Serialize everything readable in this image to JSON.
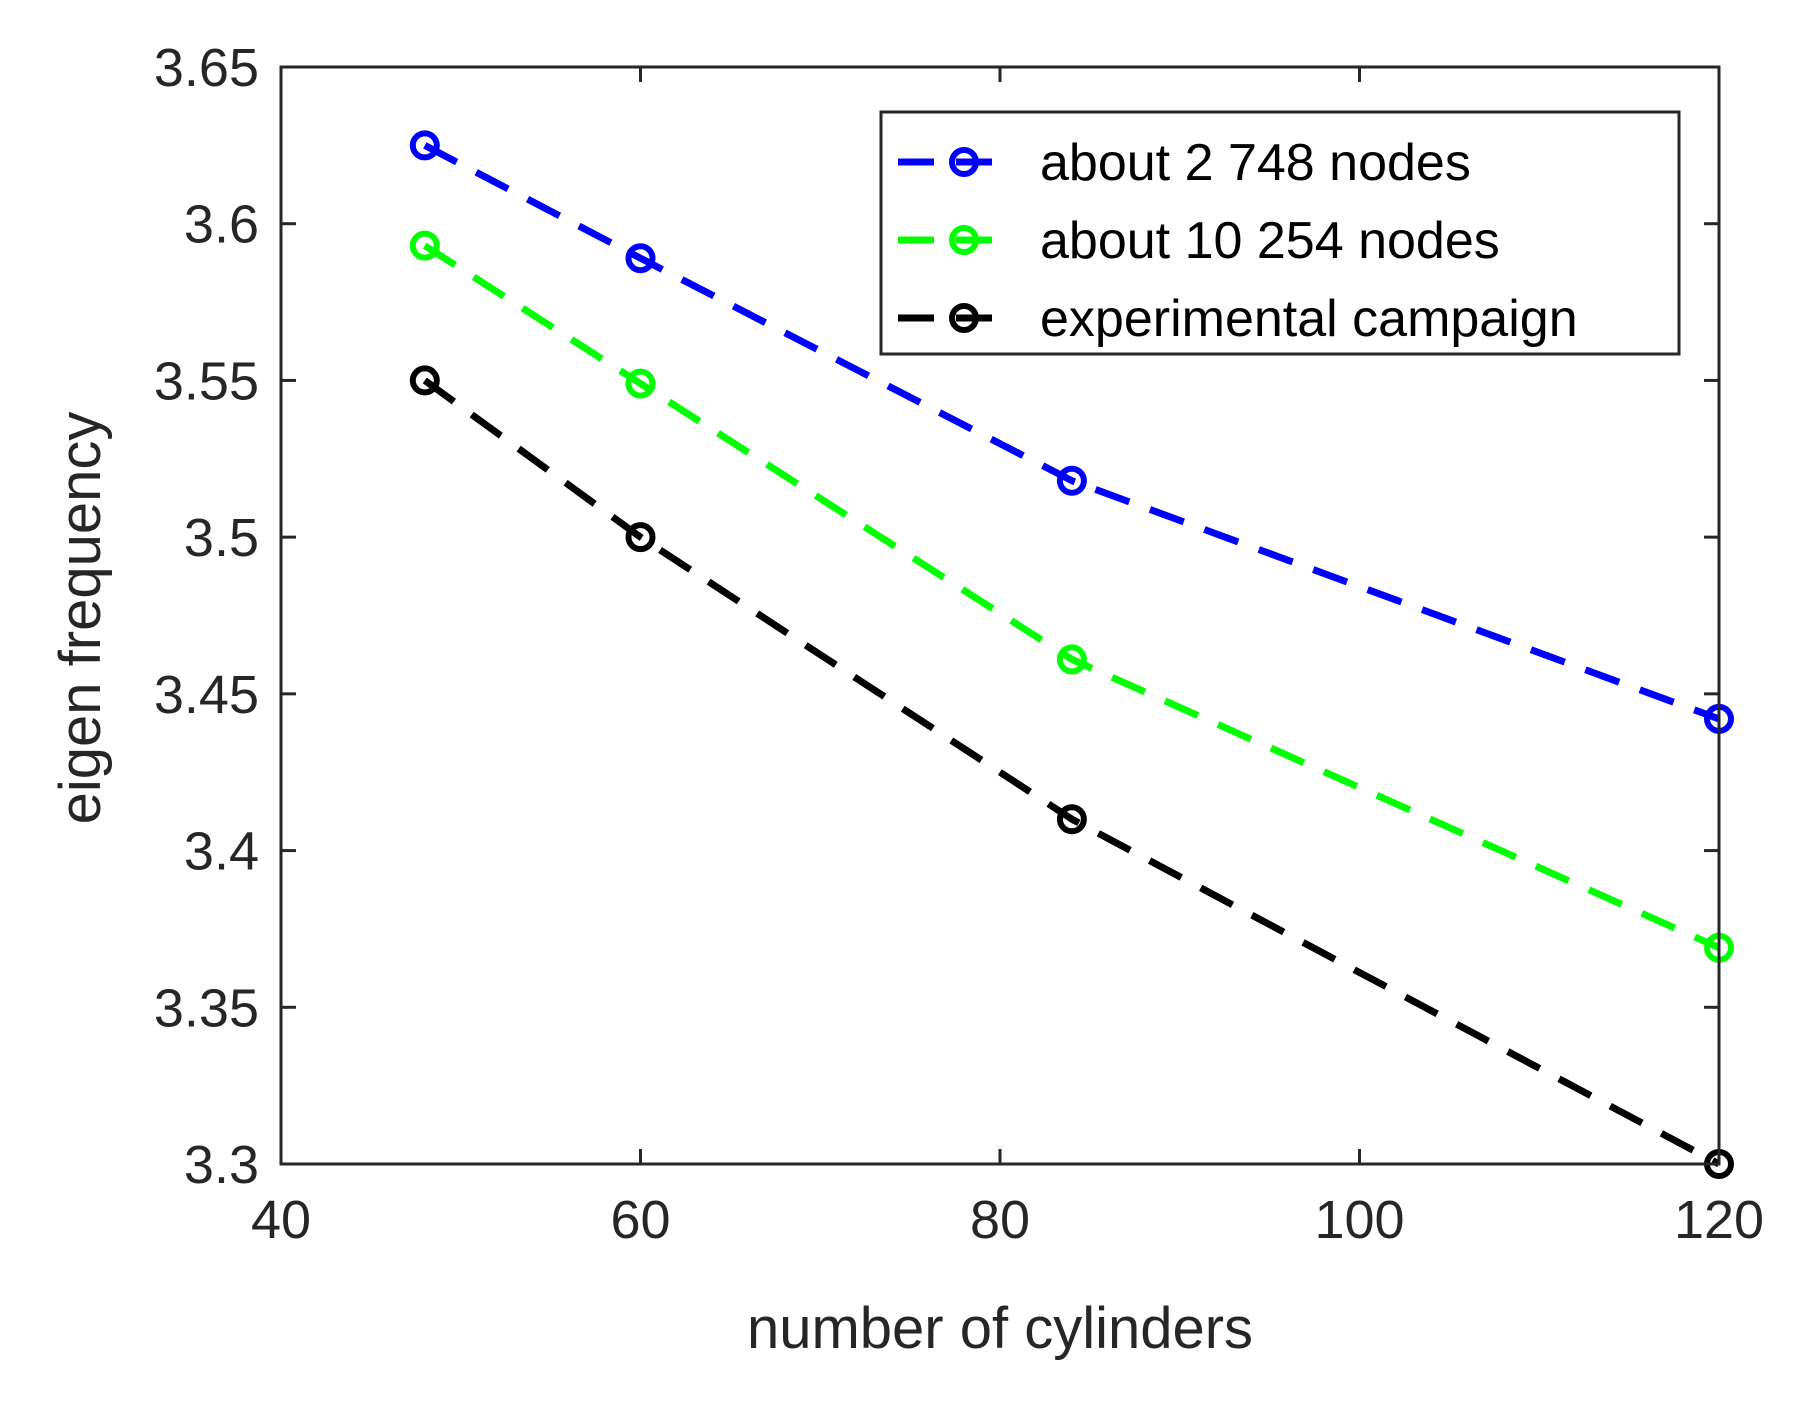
{
  "chart_data": {
    "type": "line",
    "title": "",
    "xlabel": "number of cylinders",
    "ylabel": "eigen frequency",
    "xlim": [
      40,
      120
    ],
    "ylim": [
      3.3,
      3.65
    ],
    "xticks": [
      "40",
      "60",
      "80",
      "100",
      "120"
    ],
    "yticks": [
      "3.3",
      "3.35",
      "3.4",
      "3.45",
      "3.5",
      "3.55",
      "3.6",
      "3.65"
    ],
    "grid": false,
    "legend_position": "top-right",
    "x": [
      48,
      60,
      84,
      120
    ],
    "series": [
      {
        "name": "about 2 748 nodes",
        "color": "#0000ff",
        "marker": "circle",
        "line": "dashed",
        "values": [
          3.625,
          3.589,
          3.518,
          3.442
        ]
      },
      {
        "name": "about 10 254 nodes",
        "color": "#00ff00",
        "marker": "circle",
        "line": "dashed",
        "values": [
          3.593,
          3.549,
          3.461,
          3.369
        ]
      },
      {
        "name": "experimental campaign",
        "color": "#000000",
        "marker": "circle",
        "line": "dashed",
        "values": [
          3.55,
          3.5,
          3.41,
          3.3
        ]
      }
    ]
  }
}
